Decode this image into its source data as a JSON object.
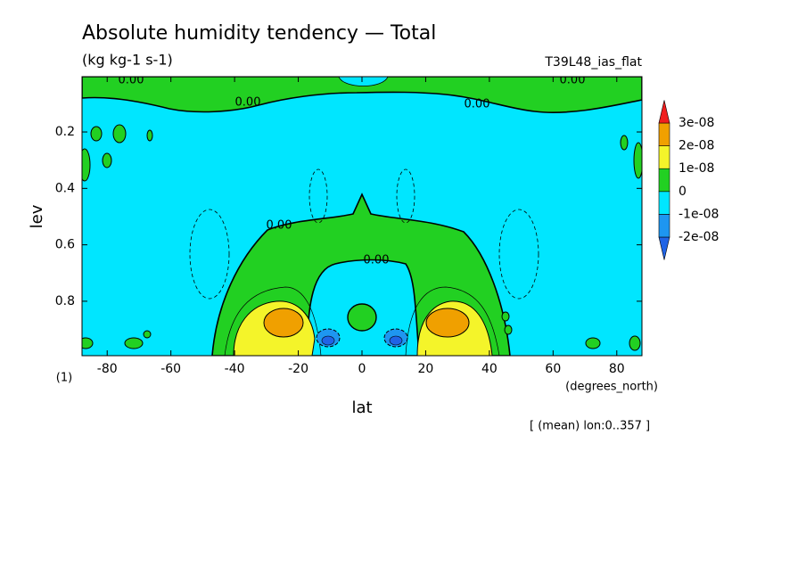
{
  "chart_data": {
    "type": "contour",
    "title": "Absolute humidity tendency — Total",
    "subtitle": "(kg kg-1 s-1)",
    "dataset": "T39L48_ias_flat",
    "xlabel": "lat",
    "xunit": "(degrees_north)",
    "ylabel": "lev",
    "yunit": "(1)",
    "note": "[ (mean) lon:0..357 ]",
    "xlim": [
      -87.9,
      87.9
    ],
    "xticks": [
      -80,
      -60,
      -40,
      -20,
      0,
      20,
      40,
      60,
      80
    ],
    "ylim": [
      0.004,
      0.993
    ],
    "yticks": [
      0.2,
      0.4,
      0.6,
      0.8
    ],
    "contour_labels": [
      "0.00",
      "0.00",
      "0.00",
      "0.00",
      "0.00",
      "0.00"
    ],
    "colorbar": {
      "ticks": [
        {
          "value": -2e-08,
          "label": "-2e-08"
        },
        {
          "value": -1e-08,
          "label": "-1e-08"
        },
        0,
        {
          "value": 1e-08,
          "label": "1e-08"
        },
        {
          "value": 2e-08,
          "label": "2e-08"
        },
        {
          "value": 3e-08,
          "label": "3e-08"
        }
      ],
      "colors": [
        "#2064e6",
        "#1e96f0",
        "#00e6ff",
        "#22d022",
        "#f4f42a",
        "#f0a000",
        "#f01e1e"
      ]
    }
  }
}
